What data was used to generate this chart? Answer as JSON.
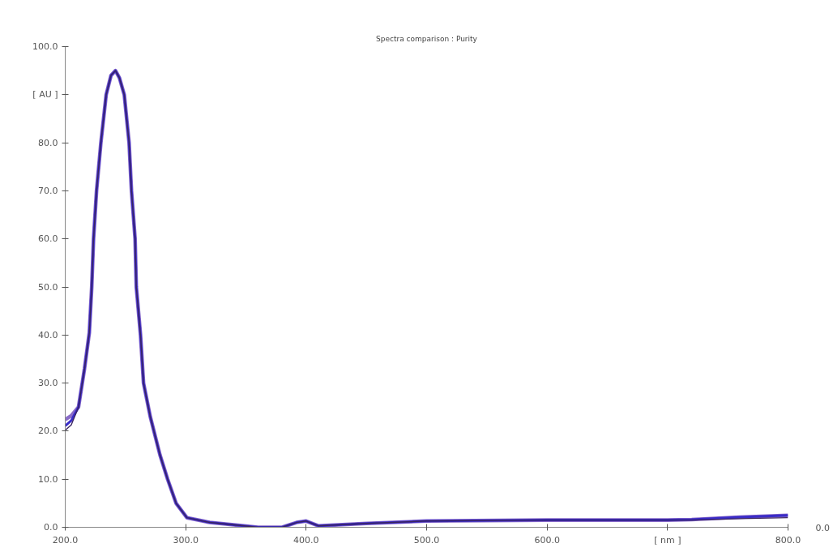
{
  "chart_data": {
    "type": "line",
    "title": "Spectra comparison : Purity",
    "x": [
      200,
      205,
      211,
      216,
      220,
      222,
      223.5,
      226,
      229.6,
      234,
      238,
      241.7,
      245,
      249,
      253,
      255,
      258,
      259,
      262.5,
      265,
      270.6,
      278.7,
      285,
      292,
      301,
      320,
      340,
      360,
      380,
      392,
      400,
      410,
      450,
      500,
      600,
      700,
      720,
      760,
      800
    ],
    "series": [
      {
        "color": "#8a6cc8",
        "values": [
          22.4,
          23.2,
          25,
          33,
          40.5,
          50,
          60,
          70,
          80,
          90,
          94,
          95,
          93.5,
          90,
          80,
          70,
          60,
          50,
          40,
          30,
          23,
          15,
          10,
          5,
          2,
          1,
          0.5,
          0,
          0,
          1,
          1.3,
          0.3,
          0.8,
          1.3,
          1.5,
          1.5,
          1.6,
          2.1,
          2.5
        ]
      },
      {
        "color": "#3a2cc8",
        "values": [
          21.1,
          22.2,
          25,
          33,
          40.5,
          50,
          60,
          70,
          80,
          90,
          94,
          95,
          93.5,
          90,
          80,
          70,
          60,
          50,
          40,
          30,
          23,
          15,
          10,
          5,
          2,
          1,
          0.5,
          0,
          0,
          1,
          1.3,
          0.3,
          0.8,
          1.3,
          1.5,
          1.5,
          1.6,
          2.1,
          2.5
        ]
      },
      {
        "color": "#3a2460",
        "values": [
          20.2,
          21.3,
          25,
          33,
          40.5,
          50,
          60,
          70,
          80,
          90,
          94,
          95,
          93.5,
          90,
          80,
          70,
          60,
          50,
          40,
          30,
          23,
          15,
          10,
          5,
          2,
          1,
          0.5,
          0,
          0,
          1,
          1.3,
          0.3,
          0.8,
          1.3,
          1.5,
          1.5,
          1.5,
          1.8,
          2.0
        ]
      }
    ],
    "xlim": [
      200,
      800
    ],
    "ylim": [
      0,
      100
    ],
    "xticks": [
      {
        "value": 200,
        "label": "200.0"
      },
      {
        "value": 300,
        "label": "300.0"
      },
      {
        "value": 400,
        "label": "400.0"
      },
      {
        "value": 500,
        "label": "500.0"
      },
      {
        "value": 600,
        "label": "600.0"
      },
      {
        "value": 700,
        "label": "[ nm ]"
      },
      {
        "value": 800,
        "label": "800.0"
      }
    ],
    "yticks": [
      {
        "value": 0,
        "label": "0.0"
      },
      {
        "value": 10,
        "label": "10.0"
      },
      {
        "value": 20,
        "label": "20.0"
      },
      {
        "value": 30,
        "label": "30.0"
      },
      {
        "value": 40,
        "label": "40.0"
      },
      {
        "value": 50,
        "label": "50.0"
      },
      {
        "value": 60,
        "label": "60.0"
      },
      {
        "value": 70,
        "label": "70.0"
      },
      {
        "value": 80,
        "label": "80.0"
      },
      {
        "value": 90,
        "label": "[ AU ]"
      },
      {
        "value": 100,
        "label": "100.0"
      }
    ],
    "annotations": [
      "0.0"
    ],
    "grid": false
  }
}
